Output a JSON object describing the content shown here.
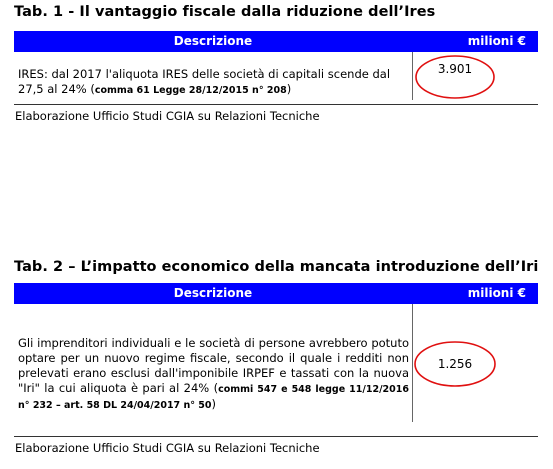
{
  "table1": {
    "title": "Tab. 1 - Il vantaggio fiscale dalla riduzione dell’Ires",
    "header_description": "Descrizione",
    "header_value": "milioni €",
    "row_text": "IRES: dal 2017 l'aliquota IRES delle società di capitali scende dal 27,5 al 24% (",
    "row_ref": "comma 61 Legge 28/12/2015 n° 208",
    "row_close": ")",
    "row_value": "3.901",
    "source": "Elaborazione Ufficio Studi CGIA su Relazioni Tecniche"
  },
  "table2": {
    "title": "Tab. 2 – L’impatto economico della mancata introduzione dell’Iri",
    "header_description": "Descrizione",
    "header_value": "milioni €",
    "row_text": "Gli imprenditori individuali e le società di persone avrebbero potuto optare per un nuovo regime fiscale, secondo il quale i redditi non prelevati erano esclusi dall'imponibile IRPEF e tassati con la nuova \"Iri\" la cui aliquota è pari al 24% (",
    "row_ref": "commi 547 e 548 legge 11/12/2016 n° 232 – art. 58 DL 24/04/2017 n° 50",
    "row_close": ")",
    "row_value": "1.256",
    "source": "Elaborazione Ufficio Studi CGIA su Relazioni Tecniche"
  },
  "colors": {
    "header_bg": "#0000ff",
    "header_text": "#ffffff",
    "highlight_circle": "#e01010"
  }
}
